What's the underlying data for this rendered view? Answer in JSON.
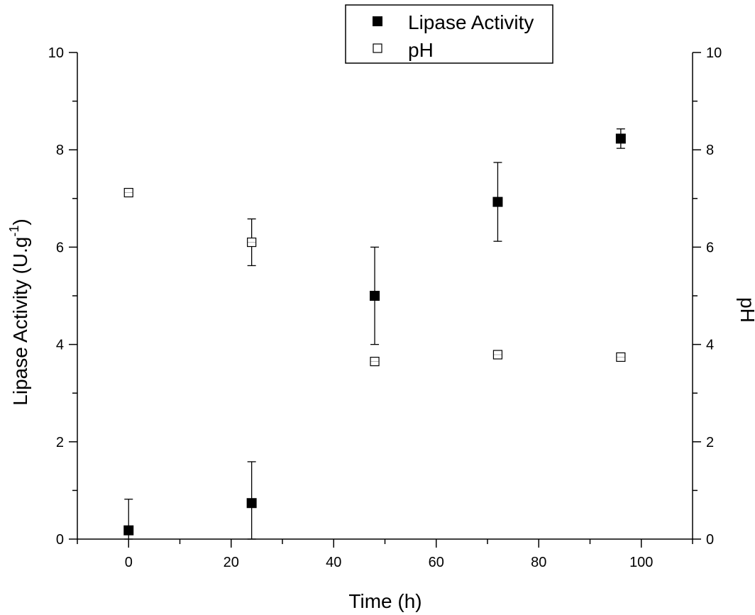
{
  "chart_data": {
    "type": "scatter",
    "title": "",
    "xlabel": "Time (h)",
    "ylabel": "Lipase Activity (U.g",
    "ylabel_sup": "-1",
    "ylabel_close": ")",
    "y2label": "pH",
    "xlim": [
      -10,
      110
    ],
    "ylim": [
      0,
      10
    ],
    "y2lim": [
      0,
      10
    ],
    "x_ticks": [
      0,
      20,
      40,
      60,
      80,
      100
    ],
    "x_tick_labels": [
      "0",
      "20",
      "40",
      "60",
      "80",
      "100"
    ],
    "y_ticks": [
      0,
      2,
      4,
      6,
      8,
      10
    ],
    "y_tick_labels": [
      "0",
      "2",
      "4",
      "6",
      "8",
      "10"
    ],
    "y2_tick_labels": [
      "0",
      "2",
      "4",
      "6",
      "8",
      "10"
    ],
    "legend_position": "top-center",
    "grid": false,
    "series": [
      {
        "name": "Lipase Activity",
        "marker": "filled-square",
        "axis": "left",
        "color": "#000000",
        "x": [
          0,
          24,
          48,
          72,
          96
        ],
        "y": [
          0.18,
          0.74,
          5.0,
          6.93,
          8.23
        ],
        "err": [
          0.64,
          0.85,
          1.0,
          0.81,
          0.2
        ]
      },
      {
        "name": "pH",
        "marker": "open-square",
        "axis": "right",
        "color": "#000000",
        "x": [
          0,
          24,
          48,
          72,
          96
        ],
        "y": [
          7.12,
          6.1,
          3.65,
          3.79,
          3.74
        ],
        "err": [
          0.06,
          0.48,
          0.05,
          0.06,
          0.05
        ]
      }
    ]
  }
}
